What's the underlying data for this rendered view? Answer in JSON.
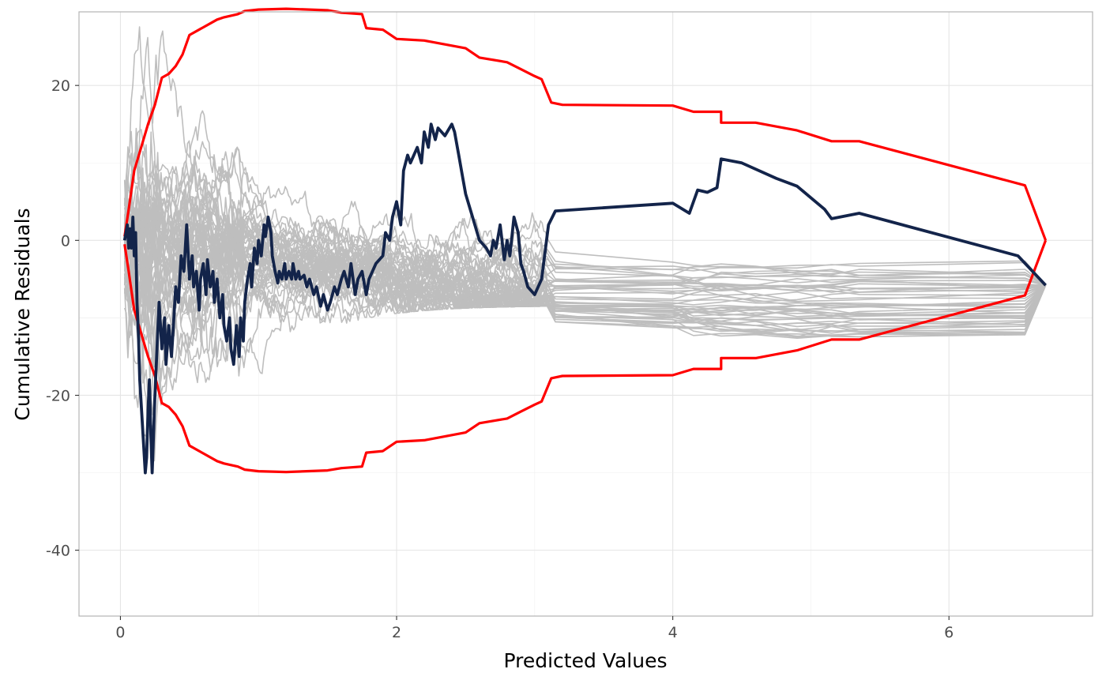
{
  "chart_data": {
    "type": "line",
    "title": "",
    "xlabel": "Predicted Values",
    "ylabel": "Cumulative Residuals",
    "xlim": [
      -0.3,
      7.04
    ],
    "ylim": [
      -48.5,
      29.5
    ],
    "x_ticks": [
      0,
      2,
      4,
      6
    ],
    "x_tick_labels": [
      "0",
      "2",
      "4",
      "6"
    ],
    "y_ticks": [
      -40,
      -20,
      0,
      20
    ],
    "y_tick_labels": [
      "-40",
      "-20",
      "0",
      "20"
    ],
    "grid": true,
    "legend": "none",
    "colors": {
      "observed": "#13244a",
      "bounds": "#ff0000",
      "simulated": "#bebebe",
      "grid": "#e5e5e5",
      "panel_border": "#b3b3b3"
    },
    "series": [
      {
        "role": "upper-bound",
        "x": [
          0.03,
          0.06,
          0.1,
          0.15,
          0.2,
          0.25,
          0.3,
          0.35,
          0.4,
          0.45,
          0.5,
          0.6,
          0.7,
          0.75,
          0.85,
          0.9,
          1.0,
          1.2,
          1.5,
          1.6,
          1.75,
          1.78,
          1.9,
          2.0,
          2.2,
          2.5,
          2.6,
          2.8,
          2.9,
          3.0,
          3.05,
          3.12,
          3.2,
          4.0,
          4.15,
          4.35,
          4.35,
          4.6,
          4.9,
          5.15,
          5.35,
          6.55,
          6.7
        ],
        "y": [
          0.5,
          4.0,
          9.0,
          12.0,
          15.0,
          17.5,
          21.0,
          21.5,
          22.5,
          24.0,
          26.5,
          27.5,
          28.5,
          28.8,
          29.2,
          29.6,
          29.8,
          29.9,
          29.7,
          29.4,
          29.2,
          27.4,
          27.2,
          26.0,
          25.8,
          24.8,
          23.6,
          23.0,
          22.1,
          21.2,
          20.8,
          17.8,
          17.5,
          17.4,
          16.6,
          16.6,
          15.2,
          15.2,
          14.2,
          12.8,
          12.8,
          7.1,
          0.0
        ]
      },
      {
        "role": "lower-bound",
        "x": [
          0.03,
          0.06,
          0.1,
          0.15,
          0.2,
          0.25,
          0.3,
          0.35,
          0.4,
          0.45,
          0.5,
          0.6,
          0.7,
          0.75,
          0.85,
          0.9,
          1.0,
          1.2,
          1.5,
          1.6,
          1.75,
          1.78,
          1.9,
          2.0,
          2.2,
          2.5,
          2.6,
          2.8,
          2.9,
          3.0,
          3.05,
          3.12,
          3.2,
          4.0,
          4.15,
          4.35,
          4.35,
          4.6,
          4.9,
          5.15,
          5.35,
          6.55,
          6.7
        ],
        "y": [
          -0.5,
          -4.0,
          -9.0,
          -12.0,
          -15.0,
          -17.5,
          -21.0,
          -21.5,
          -22.5,
          -24.0,
          -26.5,
          -27.5,
          -28.5,
          -28.8,
          -29.2,
          -29.6,
          -29.8,
          -29.9,
          -29.7,
          -29.4,
          -29.2,
          -27.4,
          -27.2,
          -26.0,
          -25.8,
          -24.8,
          -23.6,
          -23.0,
          -22.1,
          -21.2,
          -20.8,
          -17.8,
          -17.5,
          -17.4,
          -16.6,
          -16.6,
          -15.2,
          -15.2,
          -14.2,
          -12.8,
          -12.8,
          -7.1,
          0.0
        ]
      },
      {
        "role": "observed",
        "x": [
          0.03,
          0.05,
          0.06,
          0.07,
          0.08,
          0.09,
          0.1,
          0.11,
          0.12,
          0.13,
          0.14,
          0.16,
          0.18,
          0.19,
          0.2,
          0.21,
          0.22,
          0.23,
          0.25,
          0.27,
          0.28,
          0.3,
          0.32,
          0.33,
          0.35,
          0.37,
          0.38,
          0.4,
          0.42,
          0.44,
          0.46,
          0.48,
          0.5,
          0.52,
          0.53,
          0.55,
          0.57,
          0.58,
          0.6,
          0.62,
          0.63,
          0.65,
          0.67,
          0.68,
          0.7,
          0.72,
          0.74,
          0.75,
          0.77,
          0.79,
          0.8,
          0.82,
          0.84,
          0.86,
          0.87,
          0.89,
          0.9,
          0.92,
          0.94,
          0.95,
          0.97,
          0.99,
          1.0,
          1.02,
          1.04,
          1.05,
          1.07,
          1.09,
          1.1,
          1.12,
          1.14,
          1.15,
          1.17,
          1.19,
          1.2,
          1.22,
          1.24,
          1.25,
          1.27,
          1.29,
          1.3,
          1.33,
          1.35,
          1.37,
          1.4,
          1.42,
          1.45,
          1.47,
          1.5,
          1.52,
          1.55,
          1.57,
          1.6,
          1.62,
          1.65,
          1.67,
          1.7,
          1.72,
          1.75,
          1.78,
          1.8,
          1.85,
          1.9,
          1.92,
          1.95,
          1.97,
          2.0,
          2.03,
          2.05,
          2.08,
          2.1,
          2.15,
          2.18,
          2.2,
          2.23,
          2.25,
          2.28,
          2.3,
          2.35,
          2.4,
          2.42,
          2.45,
          2.48,
          2.5,
          2.55,
          2.6,
          2.65,
          2.68,
          2.7,
          2.72,
          2.75,
          2.78,
          2.8,
          2.82,
          2.85,
          2.88,
          2.9,
          2.92,
          2.95,
          3.0,
          3.05,
          3.1,
          3.15,
          4.0,
          4.12,
          4.18,
          4.25,
          4.32,
          4.35,
          4.5,
          4.75,
          4.9,
          5.1,
          5.15,
          5.35,
          6.5,
          6.7
        ],
        "y": [
          0.0,
          2.0,
          -1.0,
          1.5,
          -1.0,
          3.0,
          -2.0,
          1.0,
          -8.0,
          -12.0,
          -18.0,
          -24.0,
          -30.0,
          -28.0,
          -22.0,
          -18.0,
          -25.0,
          -30.0,
          -20.0,
          -12.0,
          -8.0,
          -14.0,
          -10.0,
          -16.0,
          -11.0,
          -15.0,
          -12.0,
          -6.0,
          -8.0,
          -2.0,
          -4.0,
          2.0,
          -5.0,
          -2.0,
          -6.0,
          -4.0,
          -9.0,
          -5.0,
          -3.0,
          -7.0,
          -2.5,
          -6.0,
          -4.0,
          -8.0,
          -5.0,
          -10.0,
          -7.0,
          -11.0,
          -13.0,
          -10.0,
          -14.0,
          -16.0,
          -11.0,
          -15.0,
          -10.0,
          -13.0,
          -8.0,
          -5.0,
          -3.0,
          -6.0,
          -1.0,
          -3.0,
          0.0,
          -2.0,
          2.0,
          0.5,
          3.0,
          1.0,
          -2.0,
          -4.0,
          -5.5,
          -4.0,
          -5.0,
          -3.0,
          -5.0,
          -4.0,
          -5.0,
          -3.0,
          -5.0,
          -4.0,
          -5.0,
          -4.5,
          -6.0,
          -5.0,
          -7.0,
          -6.0,
          -8.5,
          -7.0,
          -9.0,
          -8.0,
          -6.0,
          -7.0,
          -5.0,
          -4.0,
          -6.0,
          -3.0,
          -7.0,
          -5.0,
          -4.0,
          -7.0,
          -5.0,
          -3.0,
          -2.0,
          1.0,
          0.0,
          3.0,
          5.0,
          2.0,
          9.0,
          11.0,
          10.0,
          12.0,
          10.0,
          14.0,
          12.0,
          15.0,
          13.0,
          14.5,
          13.5,
          15.0,
          14.0,
          11.0,
          8.0,
          6.0,
          3.0,
          0.0,
          -1.0,
          -2.0,
          0.0,
          -1.0,
          2.0,
          -2.5,
          0.0,
          -2.0,
          3.0,
          1.0,
          -3.0,
          -4.0,
          -6.0,
          -7.0,
          -5.0,
          2.0,
          3.8,
          4.8,
          3.5,
          6.5,
          6.2,
          6.8,
          10.5,
          10.0,
          8.0,
          7.0,
          4.0,
          2.8,
          3.5,
          -2.0,
          -5.8
        ]
      }
    ],
    "simulated_paths": {
      "count": 50,
      "end_point": [
        6.7,
        -5.8
      ],
      "description_note": ""
    }
  }
}
